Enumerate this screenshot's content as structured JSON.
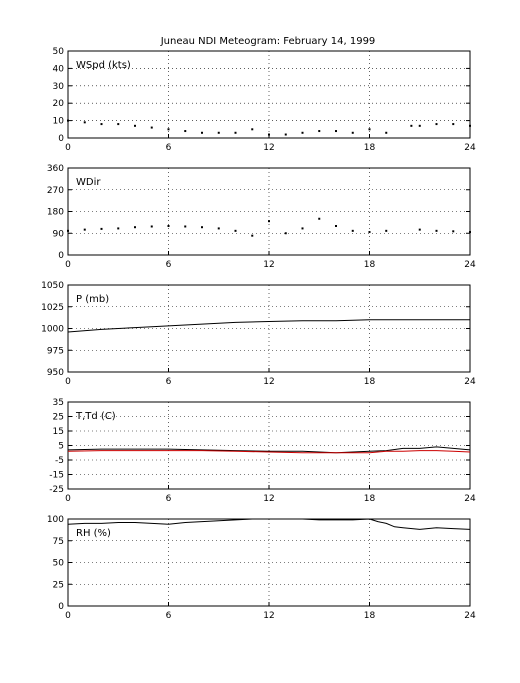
{
  "title": "Juneau NDI Meteogram:  February 14, 1999",
  "x_ticks": [
    "0",
    "6",
    "12",
    "18",
    "24"
  ],
  "chart_data": [
    {
      "type": "scatter",
      "label": "WSpd (kts)",
      "ylim": [
        0,
        50
      ],
      "y_ticks": [
        "0",
        "10",
        "20",
        "30",
        "40",
        "50"
      ],
      "xlim": [
        0,
        24
      ],
      "grid": true,
      "series": [
        {
          "color": "#000000",
          "x": [
            0,
            1,
            2,
            3,
            4,
            5,
            6,
            7,
            8,
            9,
            10,
            11,
            12,
            13,
            14,
            15,
            16,
            17,
            18,
            19,
            20.5,
            21,
            22,
            23,
            24
          ],
          "y": [
            10,
            9,
            8,
            8,
            7,
            6,
            5,
            4,
            3,
            3,
            3,
            5,
            2,
            2,
            3,
            4,
            4,
            3,
            5,
            3,
            7,
            7,
            8,
            8,
            7
          ]
        }
      ]
    },
    {
      "type": "scatter",
      "label": "WDir",
      "ylim": [
        0,
        360
      ],
      "y_ticks": [
        "0",
        "90",
        "180",
        "270",
        "360"
      ],
      "xlim": [
        0,
        24
      ],
      "grid": true,
      "series": [
        {
          "color": "#000000",
          "x": [
            0,
            1,
            2,
            3,
            4,
            5,
            6,
            7,
            8,
            9,
            10,
            11,
            12,
            13,
            14,
            15,
            16,
            17,
            18,
            19,
            20,
            21,
            22,
            23,
            24
          ],
          "y": [
            100,
            105,
            108,
            110,
            115,
            118,
            120,
            118,
            115,
            110,
            100,
            80,
            140,
            90,
            110,
            150,
            120,
            100,
            95,
            100,
            null,
            105,
            100,
            98,
            95
          ]
        }
      ]
    },
    {
      "type": "line",
      "label": "P (mb)",
      "ylim": [
        950,
        1050
      ],
      "y_ticks": [
        "950",
        "975",
        "1000",
        "1025",
        "1050"
      ],
      "xlim": [
        0,
        24
      ],
      "grid": true,
      "series": [
        {
          "color": "#000000",
          "x": [
            0,
            2,
            4,
            6,
            8,
            10,
            12,
            14,
            16,
            18,
            20,
            22,
            24
          ],
          "y": [
            996,
            999,
            1001,
            1003,
            1005,
            1007,
            1008,
            1009,
            1009,
            1010,
            1010,
            1010,
            1010
          ]
        }
      ]
    },
    {
      "type": "line",
      "label": "T,Td (C)",
      "ylim": [
        -25,
        35
      ],
      "y_ticks": [
        "-25",
        "-15",
        "-5",
        "5",
        "15",
        "25",
        "35"
      ],
      "xlim": [
        0,
        24
      ],
      "grid": true,
      "series": [
        {
          "color": "#000000",
          "x": [
            0,
            2,
            4,
            6,
            8,
            10,
            12,
            14,
            15,
            16,
            17,
            18,
            19,
            20,
            21,
            22,
            23,
            24
          ],
          "y": [
            2,
            2.5,
            2.5,
            2.5,
            2,
            1.5,
            1,
            1,
            0.5,
            0,
            0.5,
            1,
            1.5,
            3,
            3,
            4,
            3,
            2
          ]
        },
        {
          "color": "#cc0000",
          "x": [
            0,
            2,
            4,
            6,
            8,
            10,
            12,
            14,
            15,
            16,
            17,
            18,
            19,
            20,
            21,
            22,
            23,
            24
          ],
          "y": [
            1,
            1.5,
            1.5,
            1.5,
            1.5,
            1,
            0.5,
            0,
            0,
            0,
            0,
            0,
            1,
            1,
            1.5,
            1.5,
            1,
            0.5
          ]
        }
      ]
    },
    {
      "type": "line",
      "label": "RH (%)",
      "ylim": [
        0,
        100
      ],
      "y_ticks": [
        "0",
        "25",
        "50",
        "75",
        "100"
      ],
      "xlim": [
        0,
        24
      ],
      "grid": true,
      "series": [
        {
          "color": "#000000",
          "x": [
            0,
            1,
            2,
            3,
            4,
            5,
            6,
            7,
            8,
            9,
            10,
            11,
            12,
            13,
            14,
            15,
            16,
            17,
            18,
            18.5,
            19,
            19.5,
            20,
            21,
            22,
            23,
            24
          ],
          "y": [
            94,
            95,
            95,
            96,
            96,
            95,
            94,
            96,
            97,
            98,
            99,
            100,
            100,
            100,
            100,
            99,
            99,
            99,
            100,
            97,
            95,
            91,
            90,
            88,
            90,
            89,
            88
          ]
        }
      ]
    }
  ]
}
